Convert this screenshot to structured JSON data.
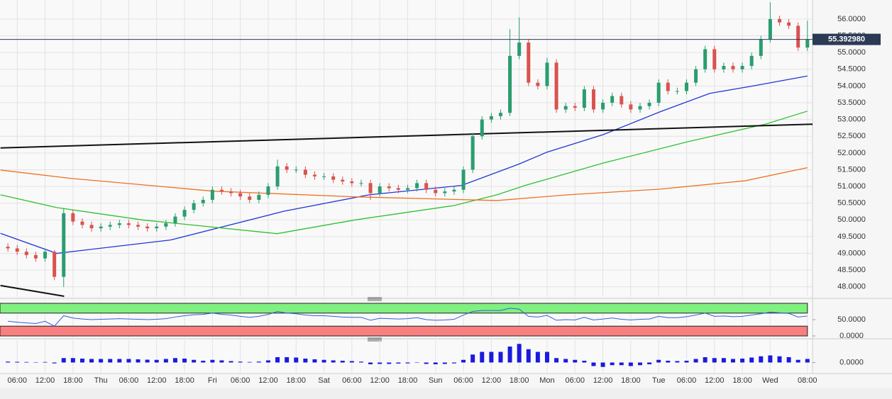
{
  "chart_data": [
    {
      "type": "candlestick",
      "x": [
        -2,
        0,
        2,
        4,
        6,
        8,
        10,
        12,
        14,
        16,
        18,
        20,
        22,
        24,
        26,
        28,
        30,
        32,
        34,
        36,
        38,
        40,
        42,
        44,
        46,
        48,
        50,
        52,
        54,
        56,
        58,
        60,
        62,
        64,
        66,
        68,
        70,
        72,
        74,
        76,
        78,
        80,
        82,
        84,
        86,
        88,
        90,
        92,
        94,
        96,
        98,
        100,
        102,
        104,
        106,
        108,
        110,
        112,
        114,
        116,
        118,
        120,
        122,
        124,
        126,
        128,
        130,
        132,
        134,
        136,
        138,
        140,
        142,
        144,
        146,
        148,
        150,
        152,
        154,
        156,
        158,
        160,
        162,
        164,
        166,
        168,
        170
      ],
      "open": [
        49.2,
        49.15,
        49.05,
        48.95,
        48.85,
        49.05,
        48.3,
        50.2,
        49.95,
        49.85,
        49.75,
        49.8,
        49.85,
        49.9,
        49.85,
        49.8,
        49.75,
        49.8,
        49.9,
        50.1,
        50.3,
        50.5,
        50.6,
        50.9,
        50.85,
        50.8,
        50.7,
        50.6,
        50.75,
        51.0,
        51.6,
        51.5,
        51.5,
        51.35,
        51.3,
        51.3,
        51.2,
        51.15,
        51.1,
        51.1,
        50.8,
        51.0,
        50.95,
        50.9,
        50.95,
        51.1,
        50.9,
        50.8,
        50.85,
        50.9,
        51.5,
        52.5,
        53.0,
        53.1,
        53.2,
        54.9,
        55.3,
        54.1,
        54.0,
        54.7,
        53.3,
        53.4,
        53.35,
        53.9,
        53.3,
        53.5,
        53.7,
        53.45,
        53.3,
        53.4,
        53.5,
        54.1,
        53.85,
        53.85,
        54.1,
        54.5,
        55.1,
        54.5,
        54.6,
        54.5,
        54.6,
        54.9,
        55.4,
        56.0,
        55.9,
        55.8,
        55.15
      ],
      "high": [
        49.3,
        49.25,
        49.15,
        49.05,
        49.15,
        49.1,
        50.35,
        50.3,
        50.05,
        49.95,
        49.9,
        49.95,
        50.0,
        50.0,
        49.95,
        49.9,
        49.9,
        50.0,
        50.2,
        50.4,
        50.6,
        50.7,
        51.0,
        51.0,
        50.95,
        50.9,
        50.8,
        50.85,
        51.1,
        51.8,
        51.7,
        51.6,
        51.6,
        51.45,
        51.4,
        51.4,
        51.3,
        51.25,
        51.2,
        51.2,
        51.1,
        51.1,
        51.05,
        51.05,
        51.2,
        51.2,
        51.0,
        50.95,
        51.0,
        51.6,
        52.6,
        53.1,
        53.2,
        53.3,
        55.7,
        56.05,
        55.4,
        54.2,
        54.85,
        54.8,
        53.5,
        53.5,
        54.0,
        54.0,
        53.6,
        53.8,
        53.8,
        53.55,
        53.5,
        53.6,
        54.2,
        54.2,
        53.95,
        54.2,
        54.6,
        55.2,
        55.2,
        54.7,
        54.7,
        54.7,
        55.0,
        55.5,
        56.5,
        56.1,
        56.0,
        55.9,
        55.95
      ],
      "low": [
        49.05,
        48.95,
        48.85,
        48.75,
        48.75,
        48.2,
        48.0,
        49.85,
        49.75,
        49.65,
        49.65,
        49.7,
        49.75,
        49.75,
        49.7,
        49.65,
        49.65,
        49.7,
        49.8,
        50.0,
        50.2,
        50.4,
        50.5,
        50.75,
        50.7,
        50.6,
        50.5,
        50.5,
        50.65,
        50.9,
        51.4,
        51.4,
        51.25,
        51.2,
        51.2,
        51.1,
        51.05,
        51.0,
        51.0,
        50.6,
        50.7,
        50.85,
        50.8,
        50.8,
        50.85,
        50.8,
        50.7,
        50.7,
        50.75,
        50.8,
        51.4,
        52.4,
        52.9,
        53.0,
        53.1,
        54.8,
        54.0,
        53.9,
        53.9,
        53.2,
        53.2,
        53.25,
        53.25,
        53.2,
        53.2,
        53.4,
        53.35,
        53.2,
        53.2,
        53.3,
        53.4,
        53.75,
        53.75,
        53.75,
        54.0,
        54.4,
        54.4,
        54.4,
        54.4,
        54.4,
        54.5,
        54.8,
        55.3,
        55.8,
        55.7,
        55.05,
        55.05
      ],
      "close": [
        49.15,
        49.05,
        48.95,
        48.85,
        49.05,
        48.3,
        50.2,
        49.95,
        49.85,
        49.75,
        49.8,
        49.85,
        49.9,
        49.85,
        49.8,
        49.75,
        49.8,
        49.9,
        50.1,
        50.3,
        50.5,
        50.6,
        50.9,
        50.85,
        50.8,
        50.7,
        50.6,
        50.75,
        51.0,
        51.6,
        51.5,
        51.5,
        51.35,
        51.3,
        51.3,
        51.2,
        51.15,
        51.1,
        51.1,
        50.8,
        51.0,
        50.95,
        50.9,
        50.95,
        51.1,
        50.9,
        50.8,
        50.85,
        50.9,
        51.5,
        52.5,
        53.0,
        53.1,
        53.2,
        54.9,
        55.3,
        54.1,
        54.0,
        54.7,
        53.3,
        53.4,
        53.35,
        53.9,
        53.3,
        53.5,
        53.7,
        53.45,
        53.3,
        53.4,
        53.5,
        54.1,
        53.85,
        53.85,
        54.1,
        54.5,
        55.1,
        54.5,
        54.6,
        54.5,
        54.6,
        54.9,
        55.4,
        56.0,
        55.9,
        55.8,
        55.15,
        55.39
      ],
      "up_color": "#2a9d6f",
      "down_color": "#d9534f",
      "series": [
        {
          "color": "#2036d6",
          "x": [
            -3.6,
            8.5,
            33,
            57.4,
            75.7,
            95.6,
            107.8,
            113.9,
            126.1,
            138.3,
            149,
            158.2,
            170
          ],
          "values": [
            49.6,
            49.0,
            49.4,
            50.26,
            50.75,
            51.03,
            51.66,
            52.02,
            52.55,
            53.23,
            53.78,
            54.0,
            54.3
          ]
        },
        {
          "color": "#2ec02e",
          "x": [
            -3.6,
            8.5,
            26.9,
            55.9,
            72.7,
            94,
            103.2,
            109.3,
            126.1,
            144.4,
            161.2,
            170
          ],
          "values": [
            50.75,
            50.37,
            50.0,
            49.59,
            50.0,
            50.43,
            50.75,
            51.03,
            51.7,
            52.34,
            52.87,
            53.25
          ]
        },
        {
          "color": "#ee7020",
          "x": [
            -3.6,
            11.6,
            42.1,
            72.7,
            103.2,
            118.5,
            138.3,
            156.6,
            170
          ],
          "values": [
            51.49,
            51.24,
            50.86,
            50.69,
            50.58,
            50.75,
            50.92,
            51.17,
            51.56
          ]
        },
        {
          "color": "#111111",
          "x": [
            -3.6,
            171.1
          ],
          "values": [
            52.15,
            52.86
          ]
        },
        {
          "color": "#111111",
          "x": [
            -3.6,
            10.1
          ],
          "values": [
            48.04,
            47.72
          ]
        }
      ],
      "current_price": 55.39298,
      "current_price_label": "55.392980",
      "xlim": [
        -3.7,
        171.1
      ],
      "ylim": [
        47.72,
        56.57
      ],
      "grid": true,
      "xticks": [
        {
          "value": 0,
          "label": "06:00"
        },
        {
          "value": 6,
          "label": "12:00"
        },
        {
          "value": 12,
          "label": "18:00"
        },
        {
          "value": 18,
          "label": "Thu"
        },
        {
          "value": 24,
          "label": "06:00"
        },
        {
          "value": 30,
          "label": "12:00"
        },
        {
          "value": 36,
          "label": "18:00"
        },
        {
          "value": 42,
          "label": "Fri"
        },
        {
          "value": 48,
          "label": "06:00"
        },
        {
          "value": 54,
          "label": "12:00"
        },
        {
          "value": 60,
          "label": "18:00"
        },
        {
          "value": 66,
          "label": "Sat"
        },
        {
          "value": 72,
          "label": "06:00"
        },
        {
          "value": 78,
          "label": "12:00"
        },
        {
          "value": 84,
          "label": "18:00"
        },
        {
          "value": 90,
          "label": "Sun"
        },
        {
          "value": 96,
          "label": "06:00"
        },
        {
          "value": 102,
          "label": "12:00"
        },
        {
          "value": 108,
          "label": "18:00"
        },
        {
          "value": 114,
          "label": "Mon"
        },
        {
          "value": 120,
          "label": "06:00"
        },
        {
          "value": 126,
          "label": "12:00"
        },
        {
          "value": 132,
          "label": "18:00"
        },
        {
          "value": 138,
          "label": "Tue"
        },
        {
          "value": 144,
          "label": "06:00"
        },
        {
          "value": 150,
          "label": "12:00"
        },
        {
          "value": 156,
          "label": "18:00"
        },
        {
          "value": 162,
          "label": "Wed"
        },
        {
          "value": 170,
          "label": "08:00"
        }
      ],
      "yticks": [
        {
          "value": 48,
          "label": "48.0000"
        },
        {
          "value": 48.5,
          "label": "48.5000"
        },
        {
          "value": 49,
          "label": "49.0000"
        },
        {
          "value": 49.5,
          "label": "49.5000"
        },
        {
          "value": 50,
          "label": "50.0000"
        },
        {
          "value": 50.5,
          "label": "50.5000"
        },
        {
          "value": 51,
          "label": "51.0000"
        },
        {
          "value": 51.5,
          "label": "51.5000"
        },
        {
          "value": 52,
          "label": "52.0000"
        },
        {
          "value": 52.5,
          "label": "52.5000"
        },
        {
          "value": 53,
          "label": "53.0000"
        },
        {
          "value": 53.5,
          "label": "53.5000"
        },
        {
          "value": 54,
          "label": "54.0000"
        },
        {
          "value": 54.5,
          "label": "54.5000"
        },
        {
          "value": 55,
          "label": "55.0000"
        },
        {
          "value": 55.5,
          "label": "55.5000"
        },
        {
          "value": 56,
          "label": "56.0000"
        }
      ]
    },
    {
      "type": "line",
      "color": "#3a5bd9",
      "values": [
        45,
        42,
        40,
        38,
        45,
        30,
        62,
        55,
        52,
        50,
        51,
        52,
        53,
        52,
        51,
        50,
        51,
        53,
        58,
        62,
        65,
        66,
        70,
        66,
        64,
        60,
        57,
        60,
        66,
        75,
        70,
        68,
        64,
        62,
        62,
        60,
        58,
        57,
        57,
        48,
        54,
        53,
        52,
        53,
        56,
        50,
        48,
        49,
        51,
        64,
        75,
        78,
        78,
        78,
        85,
        82,
        60,
        58,
        63,
        48,
        50,
        49,
        57,
        49,
        52,
        55,
        51,
        49,
        51,
        52,
        60,
        56,
        56,
        59,
        64,
        70,
        60,
        61,
        59,
        60,
        64,
        68,
        73,
        71,
        69,
        58,
        61
      ],
      "bands": [
        {
          "from": 70,
          "to": 100,
          "color": "#80f080"
        },
        {
          "from": 0,
          "to": 30,
          "color": "#f88080"
        }
      ],
      "ylim": [
        -4.3,
        104.3
      ],
      "yticks": [
        {
          "value": 50,
          "label": "50.0000"
        },
        {
          "value": 0,
          "label": "0.0000"
        }
      ]
    },
    {
      "type": "bar",
      "color": "#1a1adf",
      "values": [
        0.05,
        0.04,
        0.03,
        0.02,
        0.03,
        -0.05,
        0.25,
        0.25,
        0.22,
        0.2,
        0.2,
        0.2,
        0.2,
        0.2,
        0.18,
        0.16,
        0.15,
        0.2,
        0.25,
        0.22,
        0.15,
        0.1,
        0.15,
        0.12,
        0.08,
        0.05,
        0.03,
        0.05,
        0.12,
        0.3,
        0.3,
        0.28,
        0.22,
        0.18,
        0.15,
        0.12,
        0.1,
        0.08,
        0.05,
        -0.1,
        -0.08,
        -0.08,
        -0.06,
        -0.05,
        -0.02,
        -0.08,
        -0.1,
        -0.08,
        -0.05,
        0.15,
        0.45,
        0.6,
        0.6,
        0.6,
        0.9,
        1.05,
        0.75,
        0.6,
        0.6,
        0.25,
        0.2,
        0.15,
        0.1,
        -0.2,
        -0.25,
        -0.15,
        -0.15,
        -0.2,
        -0.15,
        -0.1,
        0.15,
        0.1,
        0.08,
        0.1,
        0.2,
        0.3,
        0.25,
        0.25,
        0.2,
        0.22,
        0.28,
        0.35,
        0.4,
        0.35,
        0.3,
        0.15,
        0.2
      ],
      "ylim": [
        -0.62,
        1.26
      ],
      "yticks": [
        {
          "value": 0,
          "label": "0.0000"
        }
      ]
    }
  ]
}
